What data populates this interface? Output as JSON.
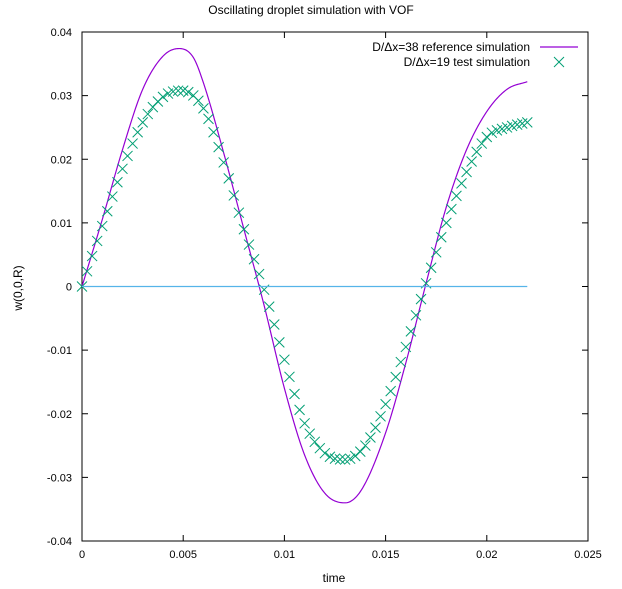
{
  "chart_data": {
    "type": "line",
    "title": "Oscillating droplet simulation with VOF",
    "xlabel": "time",
    "ylabel": "w(0,0,R)",
    "xlim": [
      0,
      0.025
    ],
    "ylim": [
      -0.04,
      0.04
    ],
    "x_ticks": [
      0,
      0.005,
      0.01,
      0.015,
      0.02,
      0.025
    ],
    "x_tick_labels": [
      "0",
      "0.005",
      "0.01",
      "0.015",
      "0.02",
      "0.025"
    ],
    "y_ticks": [
      -0.04,
      -0.03,
      -0.02,
      -0.01,
      0,
      0.01,
      0.02,
      0.03,
      0.04
    ],
    "y_tick_labels": [
      "-0.04",
      "-0.03",
      "-0.02",
      "-0.01",
      "0",
      "0.01",
      "0.02",
      "0.03",
      "0.04"
    ],
    "grid": false,
    "legend_position": "top-right",
    "series": [
      {
        "name": "D/Δx=38 reference simulation",
        "style": "line",
        "color": "#9400d3",
        "x": [
          0,
          0.001,
          0.002,
          0.003,
          0.004,
          0.0048,
          0.0055,
          0.006,
          0.007,
          0.008,
          0.009,
          0.01,
          0.011,
          0.012,
          0.013,
          0.0138,
          0.015,
          0.016,
          0.017,
          0.018,
          0.019,
          0.02,
          0.021,
          0.022
        ],
        "y": [
          0,
          0.0105,
          0.0215,
          0.031,
          0.0362,
          0.0374,
          0.036,
          0.032,
          0.021,
          0.009,
          -0.003,
          -0.016,
          -0.0265,
          -0.0325,
          -0.034,
          -0.032,
          -0.023,
          -0.012,
          0.0005,
          0.0125,
          0.0215,
          0.0275,
          0.031,
          0.0322
        ]
      },
      {
        "name": "D/Δx=19 test simulation",
        "style": "points",
        "marker": "cross",
        "color": "#009e73",
        "x_start": 0,
        "x_step": 0.00025,
        "x_end": 0.022,
        "model": {
          "x": [
            0,
            0.001,
            0.002,
            0.003,
            0.004,
            0.0049,
            0.006,
            0.007,
            0.008,
            0.009,
            0.01,
            0.011,
            0.012,
            0.013,
            0.014,
            0.015,
            0.016,
            0.017,
            0.018,
            0.019,
            0.02,
            0.021,
            0.022
          ],
          "y": [
            0,
            0.0095,
            0.0185,
            0.0258,
            0.0298,
            0.0308,
            0.028,
            0.0195,
            0.009,
            -0.0005,
            -0.0115,
            -0.0215,
            -0.0262,
            -0.0272,
            -0.025,
            -0.0185,
            -0.0095,
            0.0005,
            0.01,
            0.018,
            0.0235,
            0.025,
            0.0258
          ]
        }
      },
      {
        "name": "",
        "style": "line",
        "color": "#56b4e9",
        "x": [
          0,
          0.022
        ],
        "y": [
          0,
          0
        ]
      }
    ]
  }
}
